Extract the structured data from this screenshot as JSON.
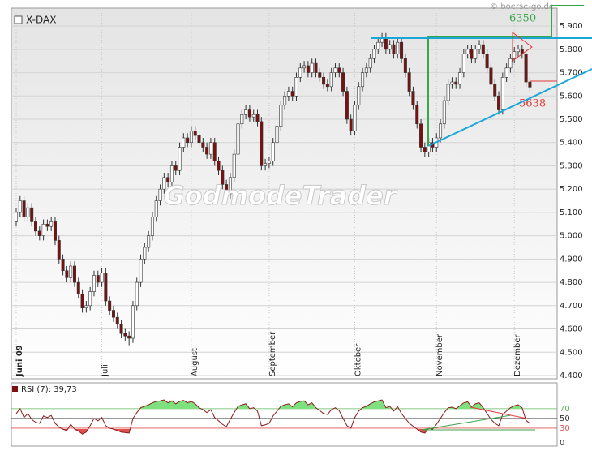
{
  "chart_data": [
    {
      "type": "candlestick",
      "title": "X-DAX",
      "source": "© boerse-go.de",
      "watermark": "GodmodeTrader",
      "up_color": "#ffffff",
      "down_color": "#7a1010",
      "grid": true,
      "annotations": [
        {
          "text": 6350,
          "color": "#3aa64a"
        },
        {
          "text": 5638,
          "color": "#e03a3a"
        }
      ],
      "xlim": [
        -1.25,
        139
      ],
      "xticks": [
        {
          "value": 0,
          "label": "Juni 09"
        },
        {
          "value": 22,
          "label": "Juli"
        },
        {
          "value": 45,
          "label": "August"
        },
        {
          "value": 65,
          "label": "September"
        },
        {
          "value": 87,
          "label": "Oktober"
        },
        {
          "value": 108,
          "label": "November"
        },
        {
          "value": 128,
          "label": "Dezember"
        }
      ],
      "ylim": [
        4386,
        5977
      ],
      "yticks": [
        {
          "value": 4400,
          "label": "4.400"
        },
        {
          "value": 4500,
          "label": "4.500"
        },
        {
          "value": 4600,
          "label": "4.600"
        },
        {
          "value": 4700,
          "label": "4.700"
        },
        {
          "value": 4800,
          "label": "4.800"
        },
        {
          "value": 4900,
          "label": "4.900"
        },
        {
          "value": 5000,
          "label": "5.000"
        },
        {
          "value": 5100,
          "label": "5.100"
        },
        {
          "value": 5200,
          "label": "5.200"
        },
        {
          "value": 5300,
          "label": "5.300"
        },
        {
          "value": 5400,
          "label": "5.400"
        },
        {
          "value": 5500,
          "label": "5.500"
        },
        {
          "value": 5600,
          "label": "5.600"
        },
        {
          "value": 5700,
          "label": "5.700"
        },
        {
          "value": 5800,
          "label": "5.800"
        },
        {
          "value": 5900,
          "label": "5.900"
        }
      ],
      "open": [
        5060,
        5100,
        5150,
        5080,
        5120,
        5060,
        5020,
        5000,
        5050,
        5040,
        5060,
        4980,
        4900,
        4850,
        4820,
        4870,
        4800,
        4750,
        4690,
        4700,
        4760,
        4830,
        4800,
        4840,
        4720,
        4680,
        4650,
        4620,
        4580,
        4570,
        4560,
        4700,
        4800,
        4900,
        4950,
        5000,
        5080,
        5150,
        5200,
        5250,
        5230,
        5300,
        5280,
        5380,
        5420,
        5400,
        5450,
        5430,
        5400,
        5380,
        5350,
        5400,
        5320,
        5280,
        5220,
        5180,
        5250,
        5350,
        5480,
        5520,
        5540,
        5510,
        5520,
        5490,
        5300,
        5310,
        5320,
        5400,
        5470,
        5560,
        5600,
        5620,
        5600,
        5680,
        5720,
        5730,
        5700,
        5740,
        5700,
        5680,
        5650,
        5640,
        5700,
        5720,
        5700,
        5620,
        5500,
        5450,
        5560,
        5640,
        5700,
        5720,
        5760,
        5800,
        5830,
        5850,
        5800,
        5820,
        5780,
        5830,
        5760,
        5700,
        5620,
        5560,
        5480,
        5380,
        5360,
        5400,
        5380,
        5420,
        5480,
        5580,
        5650,
        5660,
        5650,
        5700,
        5780,
        5800,
        5760,
        5800,
        5820,
        5780,
        5720,
        5650,
        5600,
        5540,
        5680,
        5720,
        5760,
        5790,
        5800,
        5780,
        5660
      ],
      "high": [
        5120,
        5170,
        5170,
        5140,
        5140,
        5080,
        5040,
        5070,
        5070,
        5080,
        5080,
        5000,
        4920,
        4870,
        4890,
        4890,
        4820,
        4770,
        4720,
        4780,
        4850,
        4850,
        4860,
        4860,
        4740,
        4700,
        4670,
        4640,
        4600,
        4590,
        4720,
        4820,
        4920,
        4970,
        5020,
        5100,
        5170,
        5220,
        5270,
        5270,
        5320,
        5320,
        5400,
        5440,
        5440,
        5470,
        5470,
        5450,
        5420,
        5400,
        5420,
        5420,
        5340,
        5300,
        5240,
        5270,
        5370,
        5500,
        5540,
        5560,
        5560,
        5540,
        5540,
        5510,
        5330,
        5340,
        5420,
        5490,
        5580,
        5620,
        5640,
        5640,
        5700,
        5740,
        5750,
        5750,
        5760,
        5760,
        5720,
        5700,
        5670,
        5720,
        5740,
        5740,
        5720,
        5640,
        5520,
        5580,
        5660,
        5720,
        5740,
        5780,
        5820,
        5850,
        5870,
        5870,
        5840,
        5840,
        5850,
        5850,
        5780,
        5720,
        5640,
        5580,
        5500,
        5400,
        5420,
        5420,
        5440,
        5500,
        5600,
        5670,
        5680,
        5680,
        5720,
        5800,
        5820,
        5820,
        5820,
        5840,
        5840,
        5800,
        5740,
        5670,
        5620,
        5700,
        5740,
        5780,
        5810,
        5820,
        5820,
        5800,
        5680
      ],
      "low": [
        5040,
        5080,
        5060,
        5060,
        5040,
        5000,
        4980,
        4980,
        5020,
        5020,
        4960,
        4880,
        4830,
        4800,
        4800,
        4780,
        4730,
        4670,
        4670,
        4680,
        4740,
        4780,
        4780,
        4700,
        4660,
        4630,
        4600,
        4560,
        4550,
        4530,
        4540,
        4680,
        4780,
        4880,
        4930,
        4980,
        5060,
        5130,
        5180,
        5210,
        5210,
        5260,
        5260,
        5360,
        5380,
        5380,
        5410,
        5380,
        5360,
        5330,
        5330,
        5300,
        5260,
        5200,
        5160,
        5160,
        5230,
        5330,
        5460,
        5500,
        5490,
        5490,
        5470,
        5280,
        5280,
        5290,
        5300,
        5380,
        5450,
        5540,
        5580,
        5580,
        5580,
        5660,
        5700,
        5680,
        5680,
        5680,
        5660,
        5630,
        5620,
        5620,
        5680,
        5680,
        5600,
        5480,
        5430,
        5430,
        5540,
        5620,
        5680,
        5700,
        5740,
        5780,
        5810,
        5780,
        5780,
        5760,
        5760,
        5740,
        5680,
        5600,
        5540,
        5460,
        5360,
        5340,
        5340,
        5360,
        5360,
        5400,
        5460,
        5560,
        5630,
        5630,
        5630,
        5680,
        5760,
        5740,
        5740,
        5780,
        5760,
        5700,
        5630,
        5580,
        5520,
        5520,
        5660,
        5700,
        5740,
        5770,
        5760,
        5640,
        5618
      ],
      "close": [
        5100,
        5150,
        5080,
        5120,
        5060,
        5020,
        5000,
        5050,
        5040,
        5060,
        4980,
        4900,
        4850,
        4820,
        4870,
        4800,
        4750,
        4690,
        4700,
        4760,
        4830,
        4800,
        4840,
        4720,
        4680,
        4650,
        4620,
        4580,
        4570,
        4560,
        4700,
        4800,
        4900,
        4950,
        5000,
        5080,
        5150,
        5200,
        5250,
        5230,
        5300,
        5280,
        5380,
        5420,
        5400,
        5450,
        5430,
        5400,
        5380,
        5350,
        5400,
        5320,
        5280,
        5220,
        5180,
        5250,
        5350,
        5480,
        5520,
        5540,
        5510,
        5520,
        5490,
        5300,
        5310,
        5320,
        5400,
        5470,
        5560,
        5600,
        5620,
        5600,
        5680,
        5720,
        5730,
        5700,
        5740,
        5700,
        5680,
        5650,
        5640,
        5700,
        5720,
        5700,
        5620,
        5500,
        5450,
        5560,
        5640,
        5700,
        5720,
        5760,
        5800,
        5830,
        5850,
        5800,
        5820,
        5780,
        5830,
        5760,
        5700,
        5620,
        5560,
        5480,
        5380,
        5360,
        5400,
        5380,
        5420,
        5480,
        5580,
        5650,
        5660,
        5650,
        5700,
        5780,
        5800,
        5760,
        5800,
        5820,
        5780,
        5720,
        5650,
        5600,
        5540,
        5680,
        5720,
        5760,
        5790,
        5800,
        5780,
        5660,
        5638
      ]
    },
    {
      "type": "line",
      "title": "RSI (7): 39,73",
      "color": "#8b1a1a",
      "upper_color": "#7ee07e",
      "lower_color": "#e05050",
      "xlim": [
        -1.25,
        139
      ],
      "ylim": [
        -6.7,
        123
      ],
      "yticks": [
        {
          "value": 0,
          "color": "#333333"
        },
        {
          "value": 30,
          "color": "#e05050"
        },
        {
          "value": 50,
          "color": "#333333"
        },
        {
          "value": 70,
          "color": "#5cb85c"
        }
      ],
      "values": [
        60,
        70,
        52,
        60,
        48,
        42,
        40,
        55,
        52,
        56,
        40,
        32,
        28,
        25,
        38,
        28,
        24,
        18,
        22,
        35,
        50,
        45,
        52,
        35,
        30,
        28,
        25,
        22,
        21,
        20,
        50,
        62,
        72,
        75,
        78,
        82,
        85,
        86,
        88,
        82,
        86,
        80,
        85,
        87,
        82,
        85,
        80,
        72,
        68,
        62,
        68,
        52,
        45,
        38,
        33,
        48,
        62,
        75,
        78,
        80,
        70,
        72,
        65,
        35,
        37,
        40,
        55,
        65,
        75,
        78,
        80,
        74,
        82,
        85,
        86,
        78,
        82,
        72,
        66,
        60,
        58,
        68,
        72,
        66,
        50,
        35,
        30,
        52,
        65,
        72,
        75,
        80,
        84,
        86,
        88,
        72,
        75,
        65,
        74,
        60,
        50,
        40,
        34,
        28,
        22,
        20,
        30,
        28,
        38,
        50,
        62,
        72,
        73,
        70,
        76,
        82,
        84,
        74,
        80,
        82,
        72,
        60,
        48,
        40,
        35,
        58,
        65,
        72,
        76,
        78,
        72,
        46,
        39.73
      ]
    }
  ]
}
